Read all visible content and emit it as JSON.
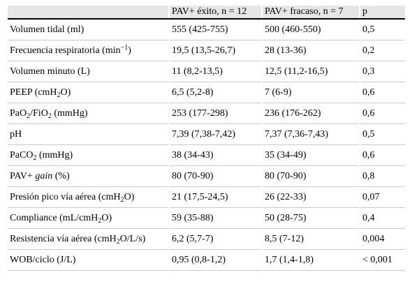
{
  "table": {
    "headers": [
      "",
      "PAV+ éxito, n = 12",
      "PAV+ fracaso, n = 7",
      "p"
    ],
    "rows": [
      {
        "label": [
          "Volumen tidal (ml)"
        ],
        "exito": "555 (425-755)",
        "fracaso": "500 (460-550)",
        "p": "0,5"
      },
      {
        "label": [
          "Frecuencia respiratoria (min",
          "−1",
          ")"
        ],
        "exito": "19,5 (13,5-26,7)",
        "fracaso": "28 (13-36)",
        "p": "0,2"
      },
      {
        "label": [
          "Volumen minuto (L)"
        ],
        "exito": "11 (8,2-13,5)",
        "fracaso": "12,5 (11,2-16,5)",
        "p": "0,3"
      },
      {
        "label": [
          "PEEP (cmH",
          "2",
          "O)"
        ],
        "exito": "6,5 (5,2-8)",
        "fracaso": "7 (6-9)",
        "p": "0,6"
      },
      {
        "label": [
          "PaO",
          "2",
          "/FiO",
          "2",
          " (mmHg)"
        ],
        "exito": "253 (177-298)",
        "fracaso": "236 (176-262)",
        "p": "0,6"
      },
      {
        "label": [
          "pH"
        ],
        "exito": "7,39 (7,38-7,42)",
        "fracaso": "7,37 (7,36-7,43)",
        "p": "0,5"
      },
      {
        "label": [
          "PaCO",
          "2",
          " (mmHg)"
        ],
        "exito": "38 (34-43)",
        "fracaso": "35 (34-49)",
        "p": "0,6"
      },
      {
        "label": [
          "PAV+ ",
          "gain",
          " (%)"
        ],
        "exito": "80 (70-90)",
        "fracaso": "80 (70-90)",
        "p": "0,8"
      },
      {
        "label": [
          "Presión pico vía aérea (cmH",
          "2",
          "O)"
        ],
        "exito": "21 (17,5-24,5)",
        "fracaso": "26 (22-33)",
        "p": "0,07"
      },
      {
        "label": [
          "Compliance (mL/cmH",
          "2",
          "O)"
        ],
        "exito": "59 (35-88)",
        "fracaso": "50 (28-75)",
        "p": "0,4"
      },
      {
        "label": [
          "Resistencia vía aérea (cmH",
          "2",
          "O/L/s)"
        ],
        "exito": "6,2 (5,7-7)",
        "fracaso": "8,5 (7-12)",
        "p": "0,004"
      },
      {
        "label": [
          "WOB/ciclo (J/L)"
        ],
        "exito": "0,95 (0,8-1,2)",
        "fracaso": "1,7 (1,4-1,8)",
        "p": "< 0,001"
      }
    ]
  }
}
